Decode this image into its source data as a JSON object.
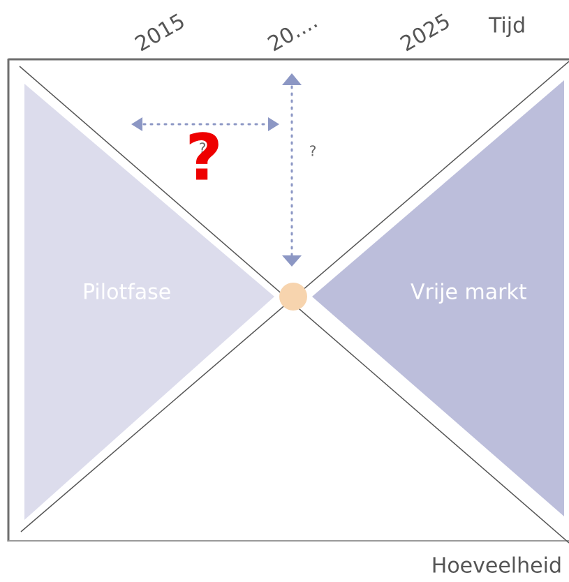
{
  "axes": {
    "x_label": "Tijd",
    "y_label": "Hoeveelheid"
  },
  "ticks": [
    "2015",
    "20....",
    "2025"
  ],
  "regions": [
    "Pilotfase",
    "Vrije markt"
  ],
  "annotations": {
    "question_small": "?",
    "question_vertical": "?",
    "question_big": "?"
  }
}
